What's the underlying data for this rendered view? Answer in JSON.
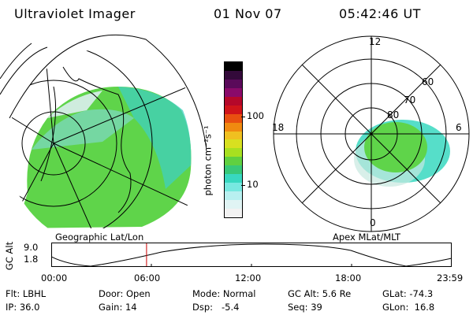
{
  "header": {
    "instrument": "Ultraviolet Imager",
    "date": "01 Nov 07",
    "time": "05:42:46 UT"
  },
  "colorbar": {
    "unit_label": "photon cm⁻²s⁻¹",
    "tick_labels": [
      "100",
      "10"
    ],
    "colors": [
      "#000000",
      "#330a3a",
      "#5a0a5a",
      "#8a0a6a",
      "#b5082a",
      "#d0141a",
      "#e85010",
      "#f08a10",
      "#f0c020",
      "#d8e020",
      "#a8e020",
      "#60d040",
      "#38c878",
      "#38d8c0",
      "#78e8e0",
      "#b8f0f0",
      "#e0f4f4",
      "#f2f2f2"
    ]
  },
  "geo_panel": {
    "label": "Geographic Lat/Lon"
  },
  "polar_panel": {
    "label": "Apex MLat/MLT",
    "mlt_labels": [
      "12",
      "18",
      "6",
      "0"
    ],
    "lat_labels": [
      "60",
      "70",
      "80"
    ]
  },
  "timeline": {
    "y_axis_label": "GC Alt",
    "y_ticks": [
      "9.0",
      "1.8"
    ],
    "x_ticks": [
      "00:00",
      "06:00",
      "12:00",
      "18:00",
      "23:59"
    ],
    "current_time_fraction": 0.238
  },
  "status": {
    "filter": "Flt: LBHL",
    "ip": "IP: 36.0",
    "door": "Door: Open",
    "gain": "Gain: 14",
    "mode": "Mode: Normal",
    "dsp": "Dsp:   -5.4",
    "gc_alt": "GC Alt: 5.6 Re",
    "seq": "Seq: 39",
    "glat": "GLat: -74.3",
    "glon": "GLon:  16.8"
  }
}
